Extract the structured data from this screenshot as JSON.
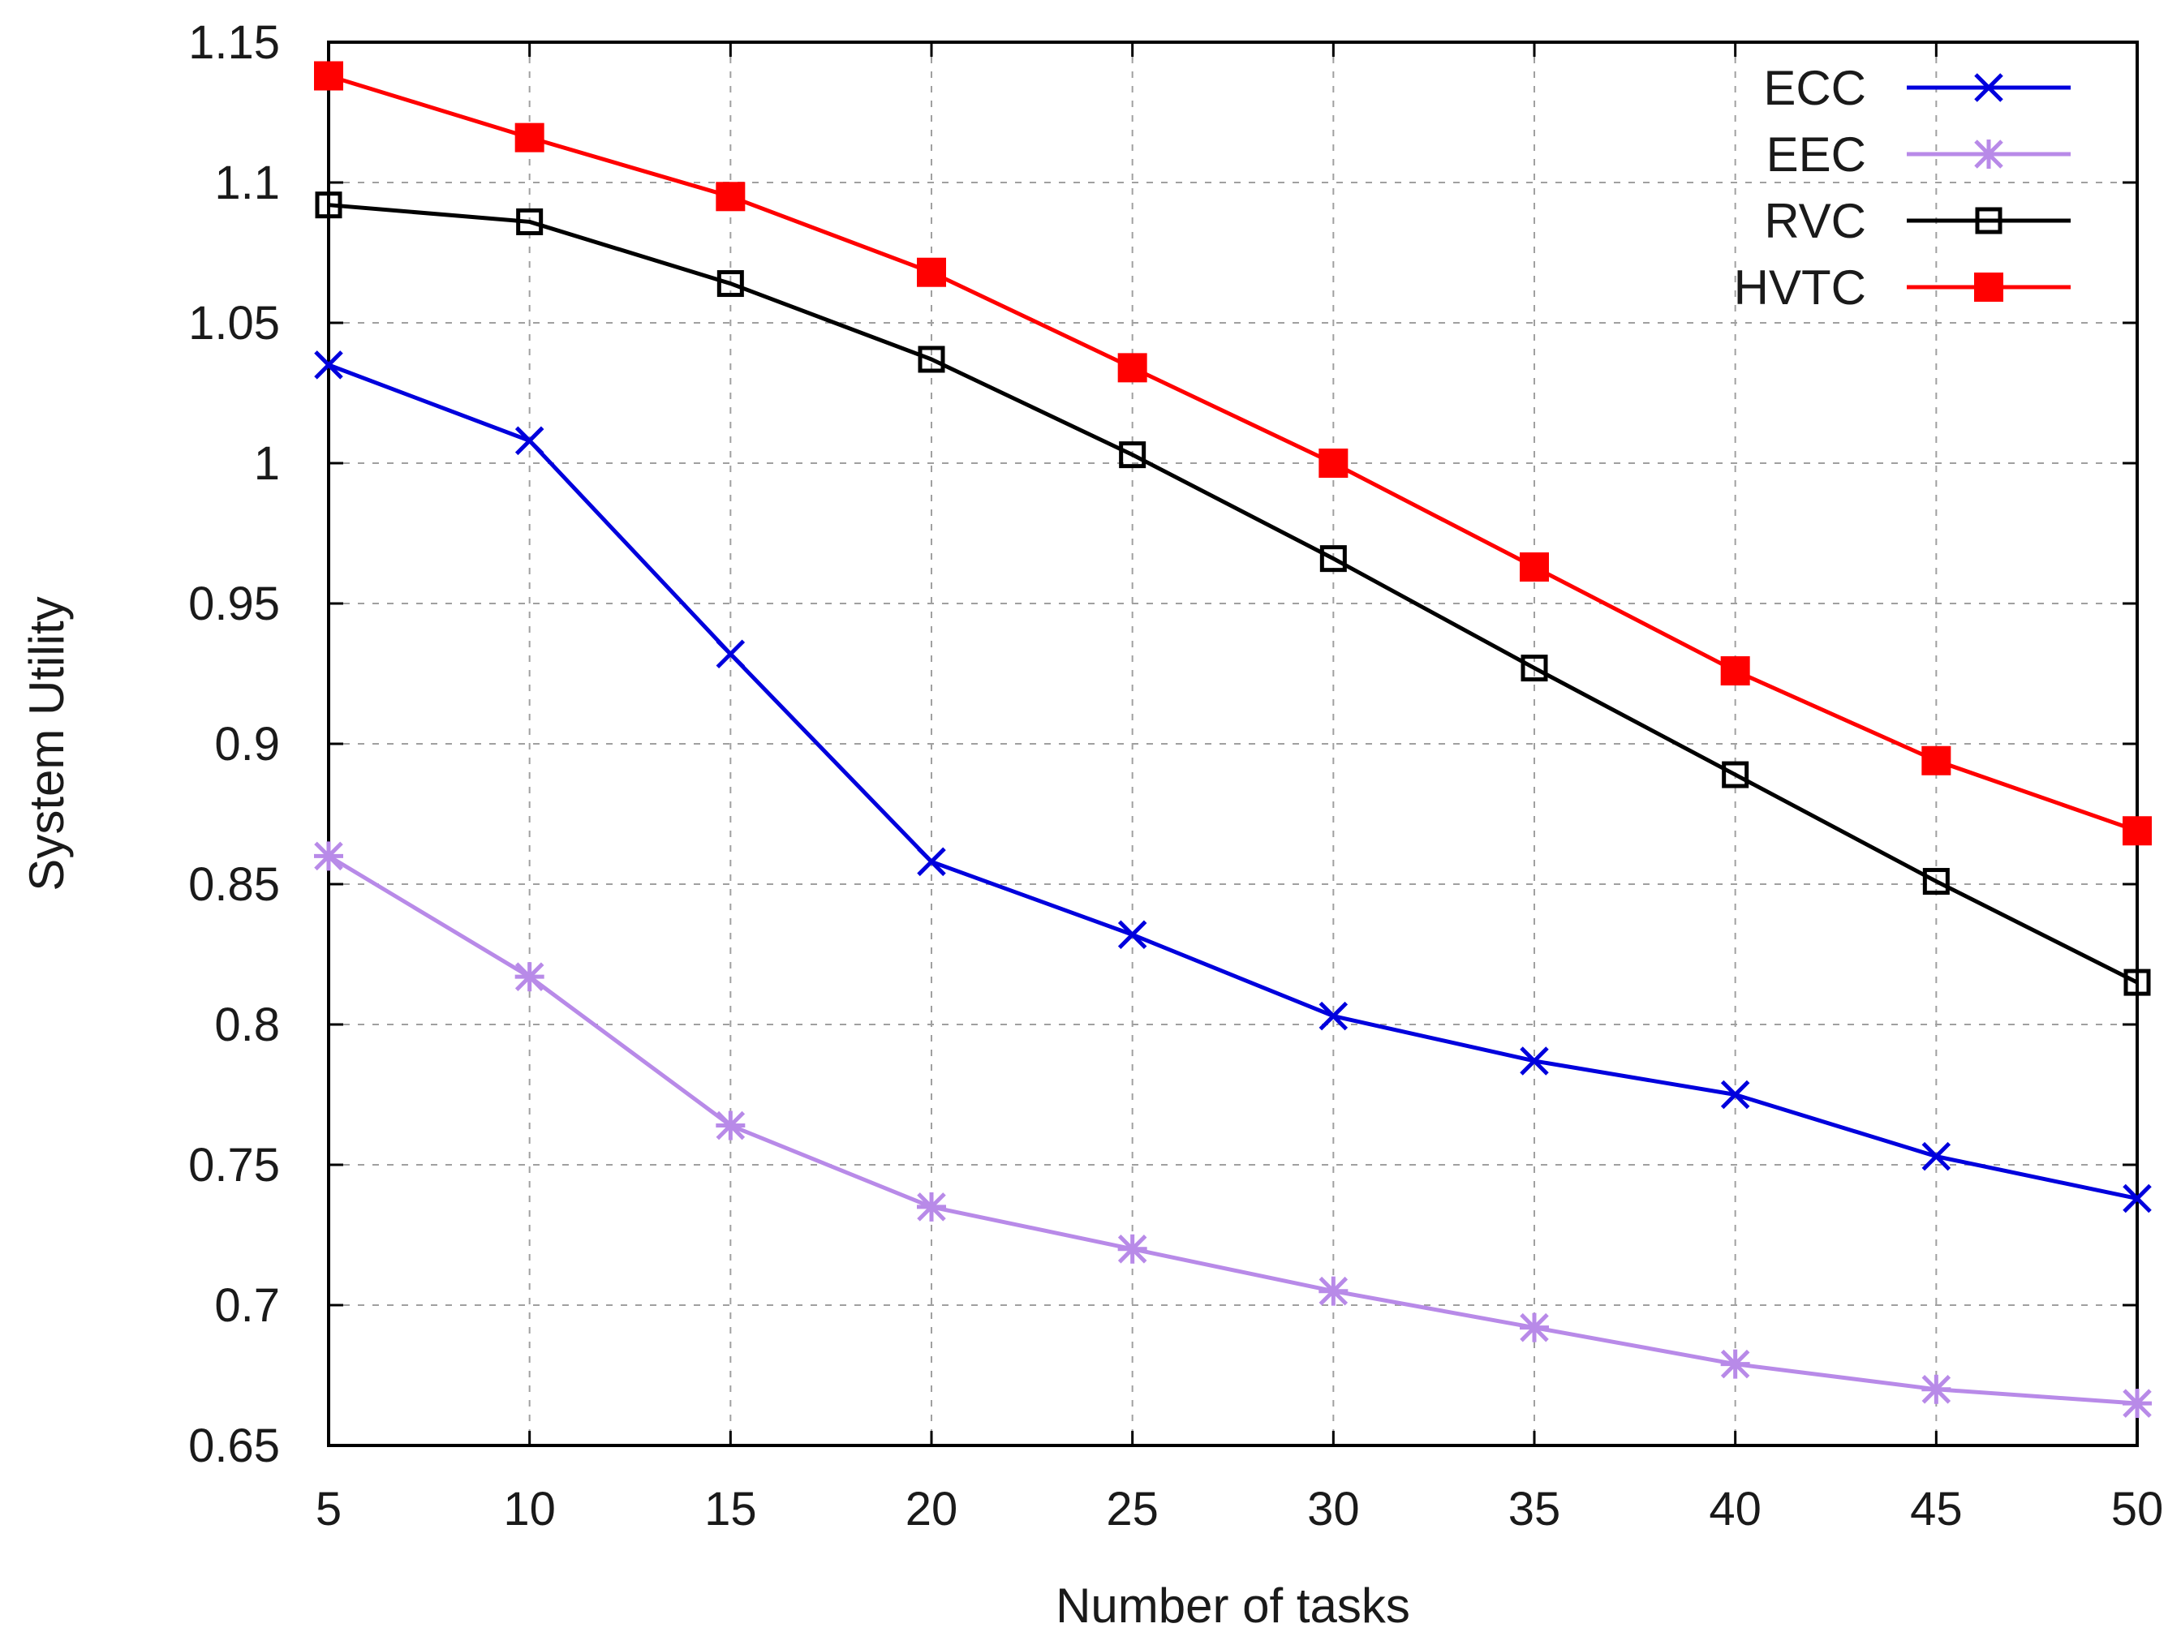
{
  "chart_data": {
    "type": "line",
    "title": "",
    "xlabel": "Number of tasks",
    "ylabel": "System Utility",
    "x": [
      5,
      10,
      15,
      20,
      25,
      30,
      35,
      40,
      45,
      50
    ],
    "xlim": [
      5,
      50
    ],
    "ylim": [
      0.65,
      1.15
    ],
    "xticks": [
      5,
      10,
      15,
      20,
      25,
      30,
      35,
      40,
      45,
      50
    ],
    "xtick_labels": [
      "5",
      "10",
      "15",
      "20",
      "25",
      "30",
      "35",
      "40",
      "45",
      "50"
    ],
    "yticks": [
      0.65,
      0.7,
      0.75,
      0.8,
      0.85,
      0.9,
      0.95,
      1.0,
      1.05,
      1.1,
      1.15
    ],
    "ytick_labels": [
      "0.65",
      "0.7",
      "0.75",
      "0.8",
      "0.85",
      "0.9",
      "0.95",
      "1",
      "1.05",
      "1.1",
      "1.15"
    ],
    "grid": true,
    "legend_position": "top-right",
    "series": [
      {
        "name": "ECC",
        "color": "#0000dd",
        "marker": "cross",
        "values": [
          1.035,
          1.008,
          0.932,
          0.858,
          0.832,
          0.803,
          0.787,
          0.775,
          0.753,
          0.738
        ]
      },
      {
        "name": "EEC",
        "color": "#b88ae8",
        "marker": "asterisk",
        "values": [
          0.86,
          0.817,
          0.764,
          0.735,
          0.72,
          0.705,
          0.692,
          0.679,
          0.67,
          0.665
        ]
      },
      {
        "name": "RVC",
        "color": "#000000",
        "marker": "open-square",
        "values": [
          1.092,
          1.086,
          1.064,
          1.037,
          1.003,
          0.966,
          0.927,
          0.889,
          0.851,
          0.815
        ]
      },
      {
        "name": "HVTC",
        "color": "#ff0000",
        "marker": "filled-square",
        "values": [
          1.138,
          1.116,
          1.095,
          1.068,
          1.034,
          1.0,
          0.963,
          0.926,
          0.894,
          0.869
        ]
      }
    ]
  }
}
